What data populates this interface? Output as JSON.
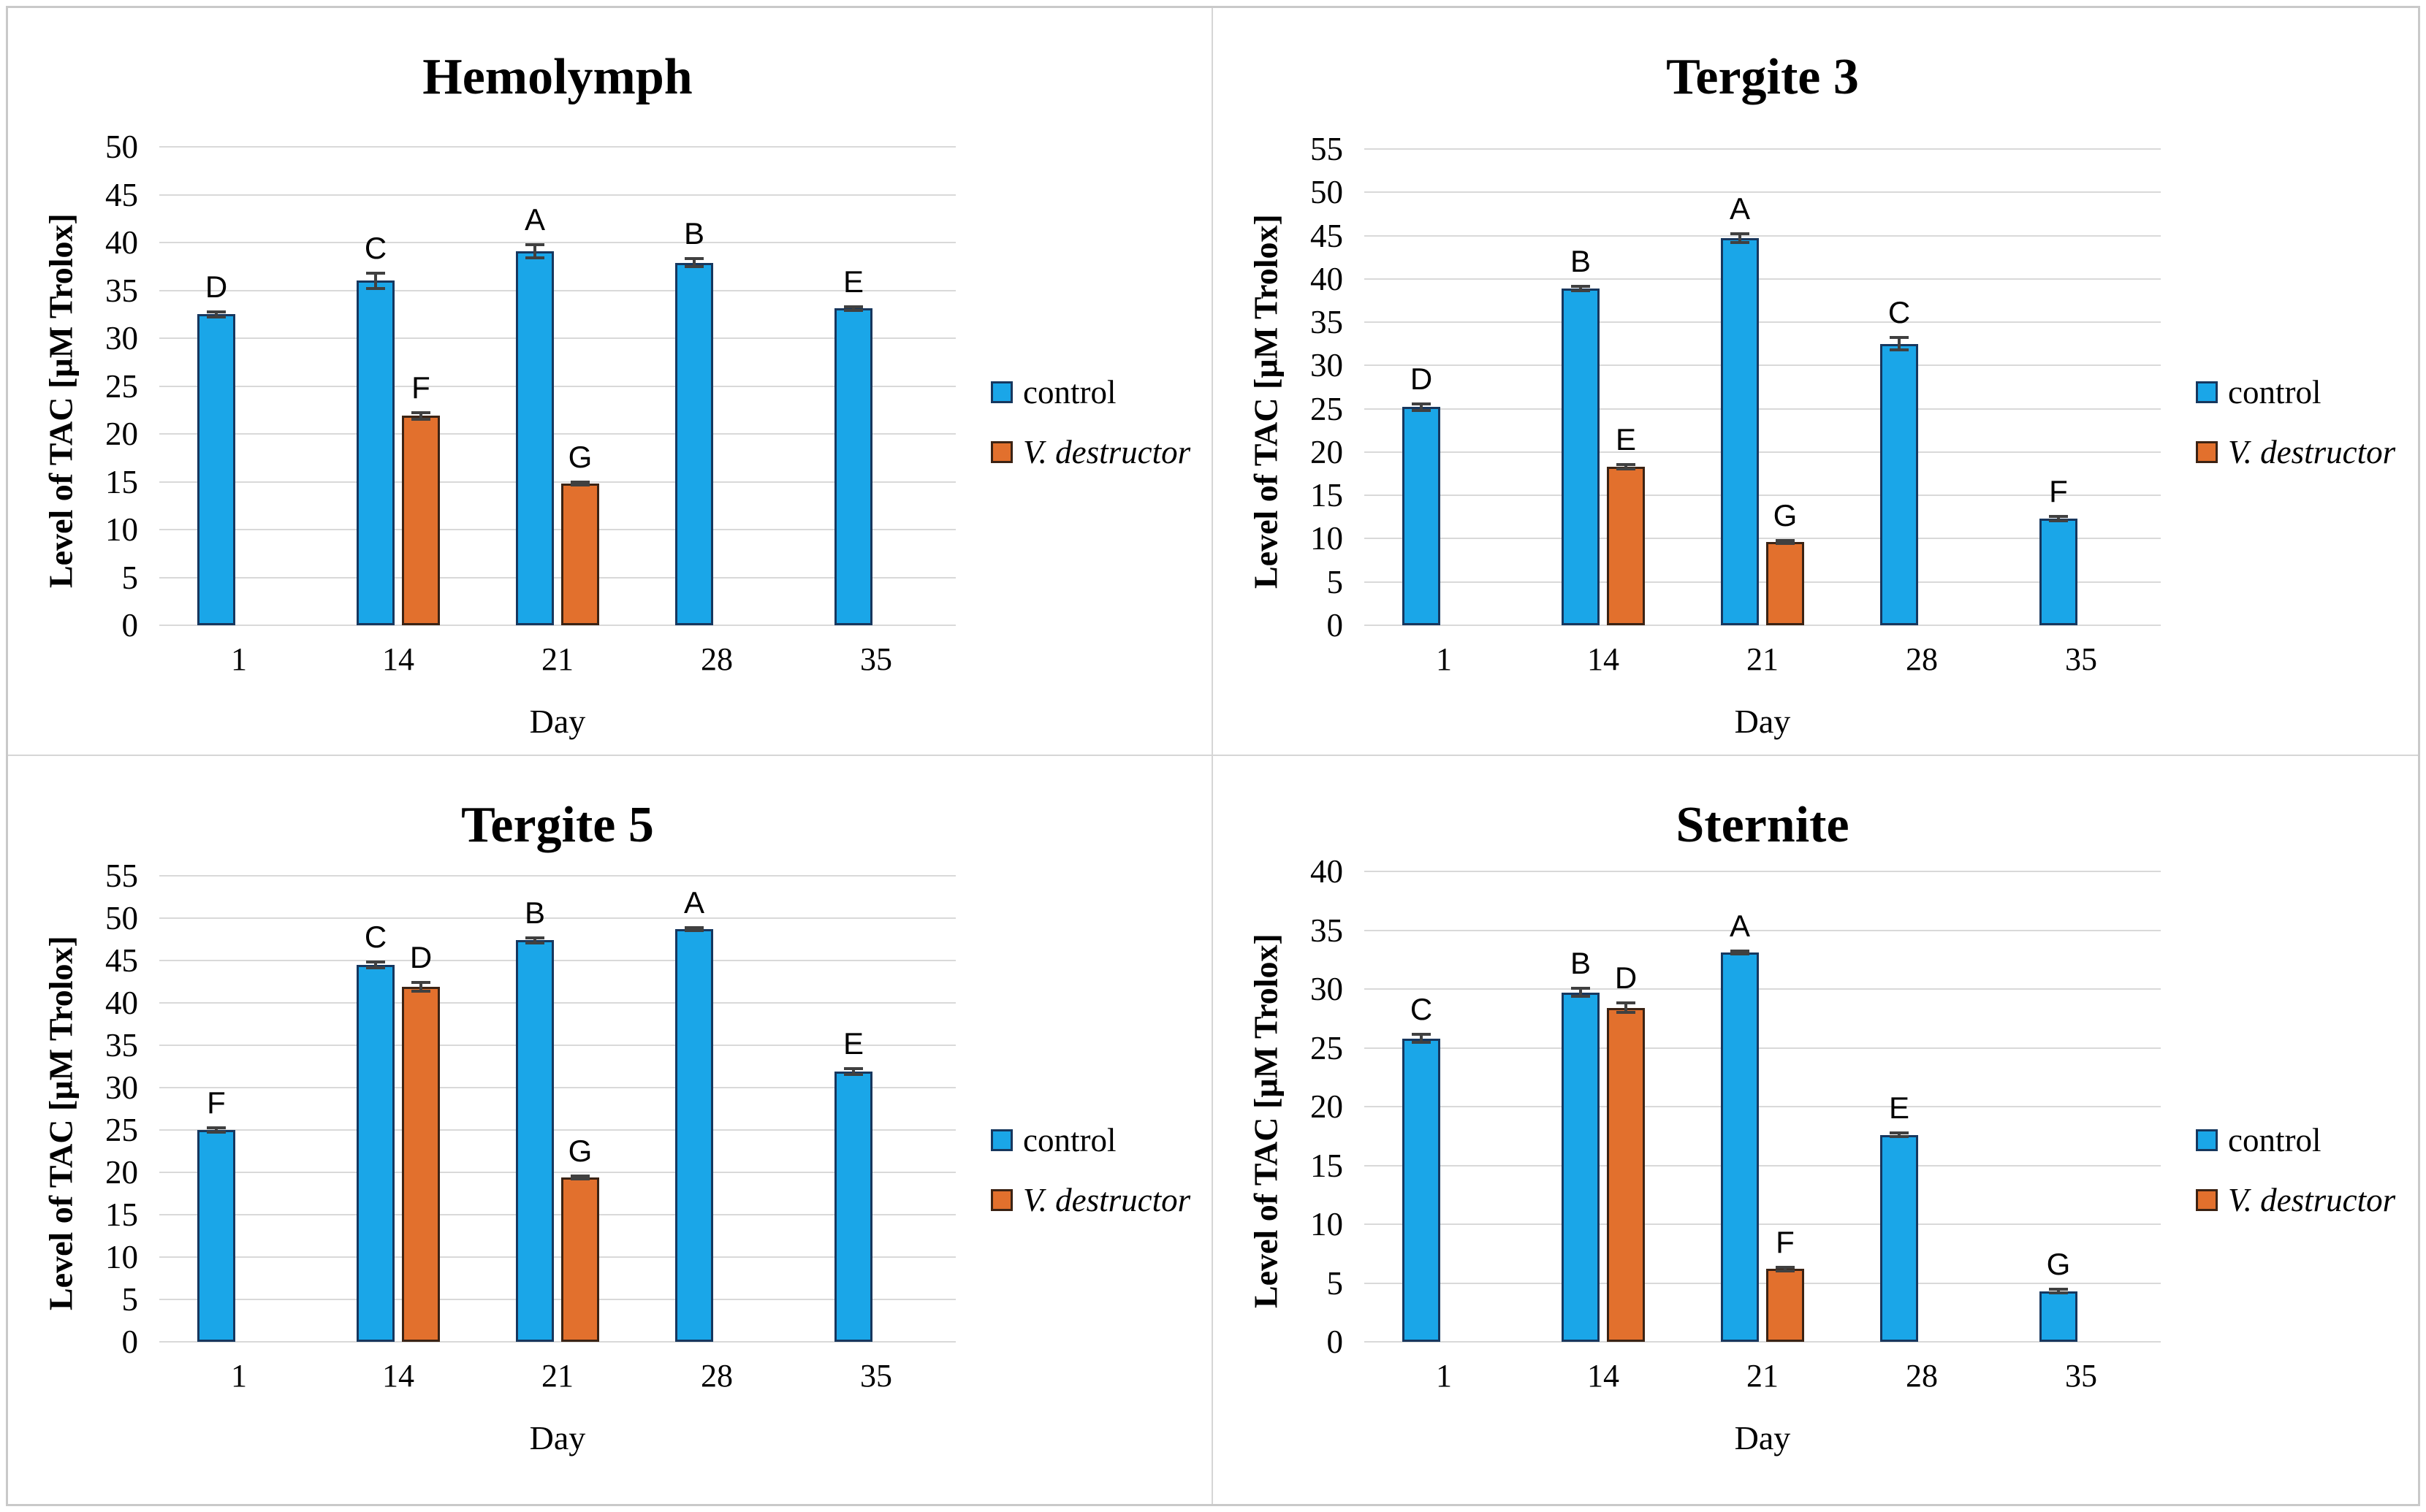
{
  "figure_title": "Four-panel TAC bar chart figure",
  "colors": {
    "control_fill": "#1AA6E8",
    "control_border": "#17375E",
    "vd_fill": "#E2702D",
    "vd_border": "#3B2314",
    "gridline": "#D9D9D9",
    "error_bar": "#404040",
    "panel_divider": "#D6D6D6",
    "outer_border": "#C9C9C9",
    "text": "#000000"
  },
  "chart_data": [
    {
      "type": "bar",
      "title": "Hemolymph",
      "xlabel": "Day",
      "ylabel": "Level of TAC [µM Trolox]",
      "ylim": [
        0,
        50
      ],
      "ytick_step": 5,
      "yticks": [
        "0",
        "5",
        "10",
        "15",
        "20",
        "25",
        "30",
        "35",
        "40",
        "45",
        "50"
      ],
      "grid": true,
      "legend_position": "right",
      "categories": [
        "1",
        "14",
        "21",
        "28",
        "35"
      ],
      "series": [
        {
          "name": "control",
          "values": [
            32.5,
            36.0,
            39.1,
            37.9,
            33.1
          ],
          "errors": [
            0.25,
            0.8,
            0.7,
            0.45,
            0.2
          ],
          "point_labels": [
            "D",
            "C",
            "A",
            "B",
            "E"
          ]
        },
        {
          "name": "V. destructor",
          "values": [
            null,
            21.9,
            14.8,
            null,
            null
          ],
          "errors": [
            null,
            0.35,
            0.15,
            null,
            null
          ],
          "point_labels": [
            null,
            "F",
            "G",
            null,
            null
          ]
        }
      ]
    },
    {
      "type": "bar",
      "title": "Tergite 3",
      "xlabel": "Day",
      "ylabel": "Level of TAC [µM Trolox]",
      "ylim": [
        0,
        55
      ],
      "ytick_step": 5,
      "yticks": [
        "0",
        "5",
        "10",
        "15",
        "20",
        "25",
        "30",
        "35",
        "40",
        "45",
        "50",
        "55"
      ],
      "grid": true,
      "legend_position": "right",
      "categories": [
        "1",
        "14",
        "21",
        "28",
        "35"
      ],
      "series": [
        {
          "name": "control",
          "values": [
            25.2,
            38.9,
            44.7,
            32.5,
            12.3
          ],
          "errors": [
            0.4,
            0.25,
            0.5,
            0.7,
            0.25
          ],
          "point_labels": [
            "D",
            "B",
            "A",
            "C",
            "F"
          ]
        },
        {
          "name": "V. destructor",
          "values": [
            null,
            18.3,
            9.6,
            null,
            null
          ],
          "errors": [
            null,
            0.25,
            0.15,
            null,
            null
          ],
          "point_labels": [
            null,
            "E",
            "G",
            null,
            null
          ]
        }
      ]
    },
    {
      "type": "bar",
      "title": "Tergite 5",
      "xlabel": "Day",
      "ylabel": "Level of TAC [µM Trolox]",
      "ylim": [
        0,
        55
      ],
      "ytick_step": 5,
      "yticks": [
        "0",
        "5",
        "10",
        "15",
        "20",
        "25",
        "30",
        "35",
        "40",
        "45",
        "50",
        "55"
      ],
      "grid": true,
      "legend_position": "right",
      "categories": [
        "1",
        "14",
        "21",
        "28",
        "35"
      ],
      "series": [
        {
          "name": "control",
          "values": [
            25.0,
            44.5,
            47.4,
            48.7,
            31.9
          ],
          "errors": [
            0.3,
            0.35,
            0.3,
            0.15,
            0.35
          ],
          "point_labels": [
            "F",
            "C",
            "B",
            "A",
            "E"
          ]
        },
        {
          "name": "V. destructor",
          "values": [
            null,
            41.9,
            19.4,
            null,
            null
          ],
          "errors": [
            null,
            0.5,
            0.15,
            null,
            null
          ],
          "point_labels": [
            null,
            "D",
            "G",
            null,
            null
          ]
        }
      ]
    },
    {
      "type": "bar",
      "title": "Sternite",
      "xlabel": "Day",
      "ylabel": "Level of TAC [µM Trolox]",
      "ylim": [
        0,
        40
      ],
      "ytick_step": 5,
      "yticks": [
        "0",
        "5",
        "10",
        "15",
        "20",
        "25",
        "30",
        "35",
        "40"
      ],
      "grid": true,
      "legend_position": "right",
      "categories": [
        "1",
        "14",
        "21",
        "28",
        "35"
      ],
      "series": [
        {
          "name": "control",
          "values": [
            25.8,
            29.7,
            33.1,
            17.6,
            4.3
          ],
          "errors": [
            0.35,
            0.35,
            0.1,
            0.15,
            0.15
          ],
          "point_labels": [
            "C",
            "B",
            "A",
            "E",
            "G"
          ]
        },
        {
          "name": "V. destructor",
          "values": [
            null,
            28.4,
            6.2,
            null,
            null
          ],
          "errors": [
            null,
            0.4,
            0.15,
            null,
            null
          ],
          "point_labels": [
            null,
            "D",
            "F",
            null,
            null
          ]
        }
      ]
    }
  ]
}
